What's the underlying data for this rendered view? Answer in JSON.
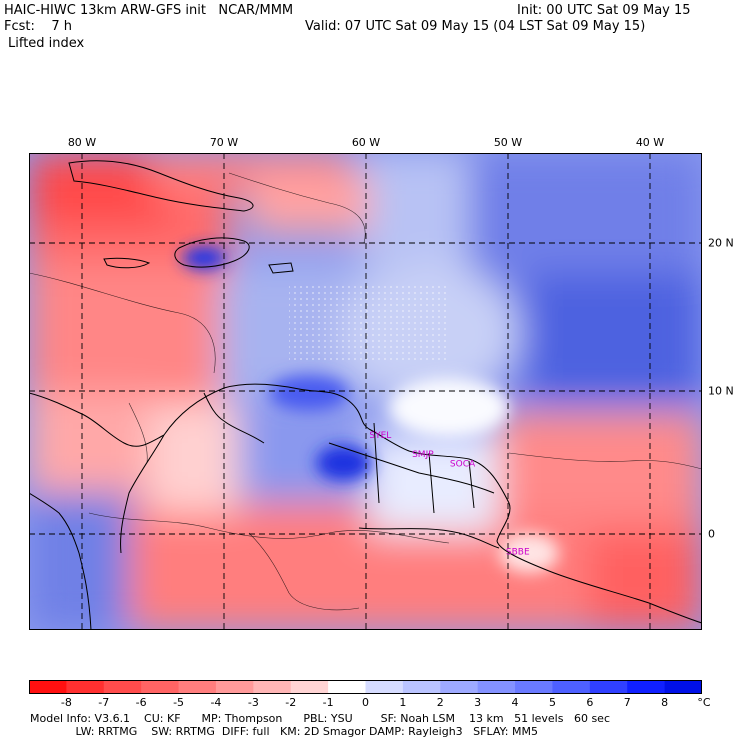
{
  "header": {
    "line1_left": "HAIC-HIWC 13km ARW-GFS init   NCAR/MMM",
    "line1_right": "Init: 00 UTC Sat 09 May 15",
    "line2_left": "Fcst:    7 h",
    "line2_right": "Valid: 07 UTC Sat 09 May 15 (04 LST Sat 09 May 15)",
    "line3_left": "Lifted index"
  },
  "map": {
    "lon_labels": [
      "80 W",
      "70 W",
      "60 W",
      "50 W",
      "40 W"
    ],
    "lat_labels": [
      "20 N",
      "10 N",
      "0"
    ],
    "lon_values": [
      -80,
      -70,
      -60,
      -50,
      -40
    ],
    "lat_values": [
      20,
      10,
      0
    ],
    "lon_range": [
      -83,
      -35.5
    ],
    "lat_range": [
      -6.7,
      26.8
    ],
    "stations": [
      {
        "name": "SYEL",
        "lon": -58.2,
        "lat": 6.8
      },
      {
        "name": "SMJP",
        "lon": -55.2,
        "lat": 5.45
      },
      {
        "name": "SOCA",
        "lon": -52.4,
        "lat": 4.8
      },
      {
        "name": "SBBE",
        "lon": -48.5,
        "lat": -1.4
      }
    ]
  },
  "colorbar": {
    "unit": "°C",
    "tick_labels": [
      "-8",
      "-7",
      "-6",
      "-5",
      "-4",
      "-3",
      "-2",
      "-1",
      "0",
      "1",
      "2",
      "3",
      "4",
      "5",
      "6",
      "7",
      "8"
    ],
    "colors": [
      "#ff1010",
      "#ff3030",
      "#ff4c4c",
      "#ff6464",
      "#ff7e7e",
      "#ff9a9a",
      "#ffb6b6",
      "#ffd4d4",
      "#ffffff",
      "#d6dcff",
      "#bac4ff",
      "#9eaaff",
      "#8492ff",
      "#6a7aff",
      "#4e60ff",
      "#3040ff",
      "#1020ff",
      "#0010e8"
    ]
  },
  "footer": {
    "line1": "Model Info: V3.6.1    CU: KF      MP: Thompson      PBL: YSU        SF: Noah LSM    13 km   51 levels   60 sec",
    "line2": "             LW: RRTMG    SW: RRTMG  DIFF: full   KM: 2D Smagor DAMP: Rayleigh3   SFLAY: MM5"
  }
}
